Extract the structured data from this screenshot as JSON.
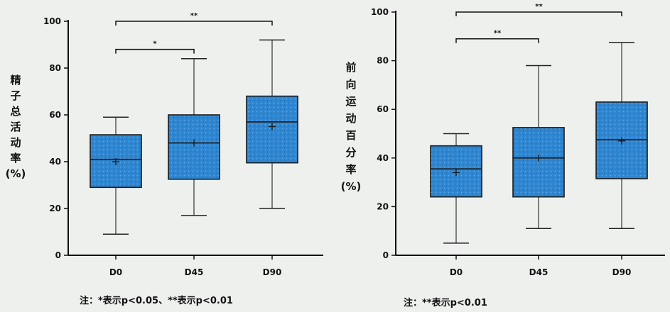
{
  "chart_data": [
    {
      "type": "box",
      "ylabel_chars": [
        "精",
        "子",
        "总",
        "活",
        "动",
        "率",
        "(%)"
      ],
      "ylim": [
        0,
        100
      ],
      "yticks": [
        "0",
        "20",
        "40",
        "60",
        "80",
        "100"
      ],
      "categories": [
        "D0",
        "D45",
        "D90"
      ],
      "boxes": [
        {
          "min": 9,
          "q1": 29,
          "median": 41,
          "q3": 51.5,
          "max": 59,
          "mean": 40
        },
        {
          "min": 17,
          "q1": 32.5,
          "median": 48,
          "q3": 60,
          "max": 84,
          "mean": 48
        },
        {
          "min": 20,
          "q1": 39.5,
          "median": 57,
          "q3": 68,
          "max": 92,
          "mean": 55
        }
      ],
      "significance": [
        {
          "from": 0,
          "to": 1,
          "label": "*",
          "y": 88
        },
        {
          "from": 0,
          "to": 2,
          "label": "**",
          "y": 100
        }
      ],
      "note": "注：*表示p<0.05、**表示p<0.01",
      "box_color": "#2f86d0"
    },
    {
      "type": "box",
      "ylabel_chars": [
        "前",
        "向",
        "运",
        "动",
        "百",
        "分",
        "率",
        "(%)"
      ],
      "ylim": [
        0,
        100
      ],
      "yticks": [
        "0",
        "20",
        "40",
        "60",
        "80",
        "100"
      ],
      "categories": [
        "D0",
        "D45",
        "D90"
      ],
      "boxes": [
        {
          "min": 5,
          "q1": 24,
          "median": 35.5,
          "q3": 45,
          "max": 50,
          "mean": 34
        },
        {
          "min": 11,
          "q1": 24,
          "median": 40,
          "q3": 52.5,
          "max": 78,
          "mean": 40
        },
        {
          "min": 11,
          "q1": 31.5,
          "median": 47.5,
          "q3": 63,
          "max": 87.5,
          "mean": 47
        }
      ],
      "significance": [
        {
          "from": 0,
          "to": 1,
          "label": "**",
          "y": 89
        },
        {
          "from": 0,
          "to": 2,
          "label": "**",
          "y": 100
        }
      ],
      "note": "注：**表示p<0.01",
      "box_color": "#2f86d0"
    }
  ]
}
